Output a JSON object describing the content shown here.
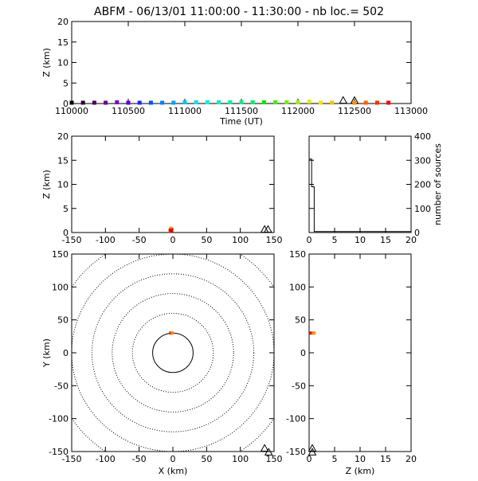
{
  "title": "ABFM - 06/13/01 11:00:00 - 11:30:00 - nb loc.=     502",
  "chart_data": [
    {
      "type": "scatter",
      "name": "time-height",
      "xlabel": "Time (UT)",
      "ylabel": "Z (km)",
      "xlim": [
        110000,
        113000
      ],
      "ylim": [
        0,
        20
      ],
      "xticks": [
        "110000",
        "110500",
        "111000",
        "111500",
        "112000",
        "112500",
        "113000"
      ],
      "yticks": [
        "0",
        "5",
        "10",
        "15",
        "20"
      ],
      "points": [
        {
          "x": 110000,
          "y": 0.2,
          "color": "#000000"
        },
        {
          "x": 110100,
          "y": 0.2,
          "color": "#2a0030"
        },
        {
          "x": 110200,
          "y": 0.2,
          "color": "#4b0058"
        },
        {
          "x": 110300,
          "y": 0.2,
          "color": "#6a0090"
        },
        {
          "x": 110400,
          "y": 0.3,
          "color": "#7a00c8"
        },
        {
          "x": 110500,
          "y": 0.2,
          "color": "#5a00e0"
        },
        {
          "x": 110600,
          "y": 0.2,
          "color": "#2020ff"
        },
        {
          "x": 110700,
          "y": 0.2,
          "color": "#0050ff"
        },
        {
          "x": 110800,
          "y": 0.2,
          "color": "#0080ff"
        },
        {
          "x": 110900,
          "y": 0.2,
          "color": "#00a0ff"
        },
        {
          "x": 111000,
          "y": 0.3,
          "color": "#00c0ff"
        },
        {
          "x": 111100,
          "y": 0.3,
          "color": "#00e0f0"
        },
        {
          "x": 111200,
          "y": 0.3,
          "color": "#00f0e0"
        },
        {
          "x": 111300,
          "y": 0.3,
          "color": "#00f0c0"
        },
        {
          "x": 111400,
          "y": 0.3,
          "color": "#00f0a0"
        },
        {
          "x": 111500,
          "y": 0.3,
          "color": "#00f080"
        },
        {
          "x": 111600,
          "y": 0.3,
          "color": "#00f060"
        },
        {
          "x": 111700,
          "y": 0.3,
          "color": "#00e800"
        },
        {
          "x": 111800,
          "y": 0.3,
          "color": "#40f000"
        },
        {
          "x": 111900,
          "y": 0.3,
          "color": "#70f000"
        },
        {
          "x": 112000,
          "y": 0.3,
          "color": "#a0f000"
        },
        {
          "x": 112100,
          "y": 0.5,
          "color": "#e0f000"
        },
        {
          "x": 112200,
          "y": 0.2,
          "color": "#ffe000"
        },
        {
          "x": 112300,
          "y": 0.2,
          "color": "#ffc000"
        },
        {
          "x": 112500,
          "y": 0.2,
          "color": "#ff9000"
        },
        {
          "x": 112600,
          "y": 0.2,
          "color": "#ff6000"
        },
        {
          "x": 112700,
          "y": 0.2,
          "color": "#ff3000"
        },
        {
          "x": 112800,
          "y": 0.2,
          "color": "#ff0000"
        }
      ],
      "station_markers_x": [
        112400,
        112500
      ]
    },
    {
      "type": "scatter",
      "name": "x-height",
      "xlabel": "",
      "ylabel": "Z (km)",
      "xlim": [
        -150,
        150
      ],
      "ylim": [
        0,
        20
      ],
      "xticks": [
        "-150",
        "-100",
        "-50",
        "0",
        "50",
        "100",
        "150"
      ],
      "yticks": [
        "0",
        "5",
        "10",
        "15",
        "20"
      ],
      "points": [
        {
          "x": -3,
          "y": 0.9,
          "color": "#ff9000"
        },
        {
          "x": -4,
          "y": 0.5,
          "color": "#ff0000"
        },
        {
          "x": -2,
          "y": 0.3,
          "color": "#dd0000"
        }
      ],
      "station_markers_x": [
        136,
        141
      ]
    },
    {
      "type": "histogram",
      "name": "height-distribution",
      "xlabel": "",
      "ylabel": "number of sources",
      "xlim": [
        0,
        20
      ],
      "ylim": [
        0,
        400
      ],
      "xticks": [
        "0",
        "5",
        "10",
        "15",
        "20"
      ],
      "yticks": [
        "0",
        "100",
        "200",
        "300",
        "400"
      ],
      "bins": [
        {
          "x0": 0.0,
          "x1": 0.5,
          "value": 305
        },
        {
          "x0": 0.5,
          "x1": 1.0,
          "value": 190
        },
        {
          "x0": 1.0,
          "x1": 20.0,
          "value": 4
        }
      ]
    },
    {
      "type": "scatter",
      "name": "plan-view",
      "xlabel": "X (km)",
      "ylabel": "Y (km)",
      "xlim": [
        -150,
        150
      ],
      "ylim": [
        -150,
        150
      ],
      "xticks": [
        "-150",
        "-100",
        "-50",
        "0",
        "50",
        "100",
        "150"
      ],
      "yticks": [
        "-150",
        "-100",
        "-50",
        "0",
        "50",
        "100",
        "150"
      ],
      "range_rings_km": [
        30,
        60,
        90,
        120,
        150,
        180
      ],
      "points": [
        {
          "x": -3,
          "y": 30,
          "color": "#ff0000"
        },
        {
          "x": -1,
          "y": 30,
          "color": "#ff9000"
        }
      ],
      "station_markers": [
        {
          "x": 136,
          "y": -145
        },
        {
          "x": 142,
          "y": -151
        }
      ]
    },
    {
      "type": "scatter",
      "name": "height-y",
      "xlabel": "Z (km)",
      "ylabel": "",
      "xlim": [
        0,
        20
      ],
      "ylim": [
        -150,
        150
      ],
      "xticks": [
        "0",
        "5",
        "10",
        "15",
        "20"
      ],
      "yticks": [
        "-150",
        "-100",
        "-50",
        "0",
        "50",
        "100",
        "150"
      ],
      "points": [
        {
          "x": 0.5,
          "y": 30,
          "color": "#ff0000"
        },
        {
          "x": 0.9,
          "y": 30,
          "color": "#ff9000"
        }
      ],
      "station_markers_y": [
        -145,
        -151
      ]
    }
  ]
}
